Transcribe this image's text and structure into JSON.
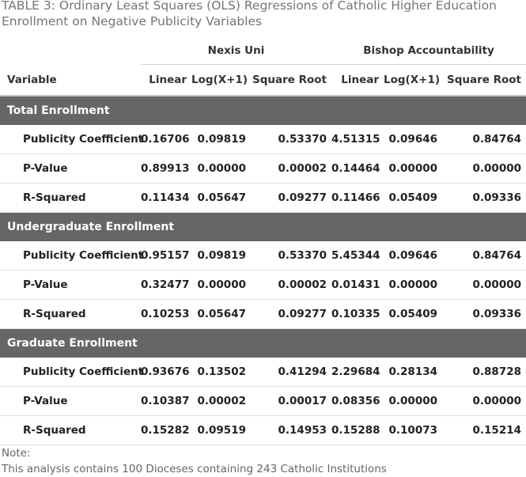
{
  "caption": "TABLE 3: Ordinary Least Squares (OLS) Regressions of Catholic Higher Education Enrollment on Negative Publicity Variables",
  "groups": [
    "Nexis Uni",
    "Bishop Accountability"
  ],
  "columns": [
    "Variable",
    "Linear",
    "Log(X+1)",
    "Square Root",
    "Linear",
    "Log(X+1)",
    "Square Root"
  ],
  "sections": [
    {
      "title": "Total Enrollment",
      "rows": [
        {
          "label": "Publicity Coefficient",
          "values": [
            "0.16706",
            "0.09819",
            "0.53370",
            "4.51315",
            "0.09646",
            "0.84764"
          ]
        },
        {
          "label": "P-Value",
          "values": [
            "0.89913",
            "0.00000",
            "0.00002",
            "0.14464",
            "0.00000",
            "0.00000"
          ]
        },
        {
          "label": "R-Squared",
          "values": [
            "0.11434",
            "0.05647",
            "0.09277",
            "0.11466",
            "0.05409",
            "0.09336"
          ]
        }
      ]
    },
    {
      "title": "Undergraduate Enrollment",
      "rows": [
        {
          "label": "Publicity Coefficient",
          "values": [
            "0.95157",
            "0.09819",
            "0.53370",
            "5.45344",
            "0.09646",
            "0.84764"
          ]
        },
        {
          "label": "P-Value",
          "values": [
            "0.32477",
            "0.00000",
            "0.00002",
            "0.01431",
            "0.00000",
            "0.00000"
          ]
        },
        {
          "label": "R-Squared",
          "values": [
            "0.10253",
            "0.05647",
            "0.09277",
            "0.10335",
            "0.05409",
            "0.09336"
          ]
        }
      ]
    },
    {
      "title": "Graduate Enrollment",
      "rows": [
        {
          "label": "Publicity Coefficient",
          "values": [
            "0.93676",
            "0.13502",
            "0.41294",
            "2.29684",
            "0.28134",
            "0.88728"
          ]
        },
        {
          "label": "P-Value",
          "values": [
            "0.10387",
            "0.00002",
            "0.00017",
            "0.08356",
            "0.00000",
            "0.00000"
          ]
        },
        {
          "label": "R-Squared",
          "values": [
            "0.15282",
            "0.09519",
            "0.14953",
            "0.15288",
            "0.10073",
            "0.15214"
          ]
        }
      ]
    }
  ],
  "note": {
    "label": "Note:",
    "text": "This analysis contains 100 Dioceses containing 243 Catholic Institutions"
  }
}
